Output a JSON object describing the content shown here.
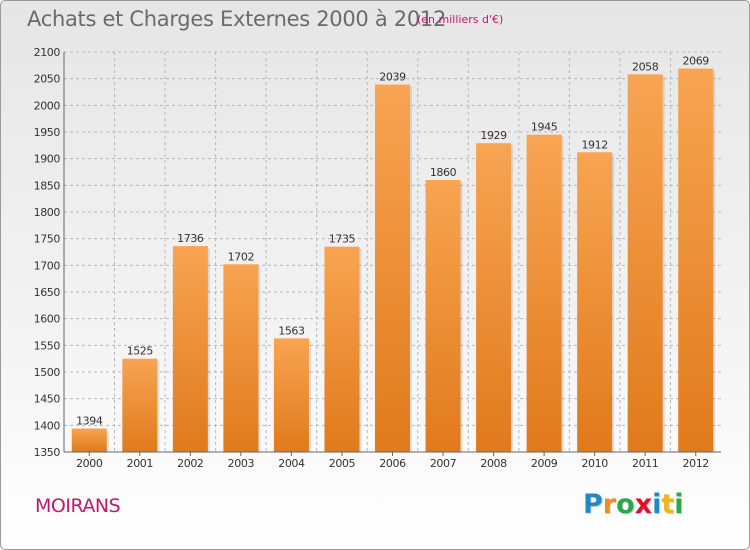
{
  "title": "Achats et Charges Externes 2000 à 2012",
  "subtitle": "(en milliers d'€)",
  "commune": "MOIRANS",
  "logo": {
    "letters": [
      "P",
      "r",
      "o",
      "x",
      "i",
      "t",
      "i"
    ],
    "colors": [
      "#1e88c8",
      "#f08c1e",
      "#2aa84a",
      "#e0102a",
      "#1e88c8",
      "#f0b41e",
      "#2aa84a"
    ]
  },
  "colors": {
    "bar_light": "#f8a452",
    "bar_dark": "#e07a1c",
    "grid": "#b8b8b8"
  },
  "chart_data": {
    "type": "bar",
    "categories": [
      "2000",
      "2001",
      "2002",
      "2003",
      "2004",
      "2005",
      "2006",
      "2007",
      "2008",
      "2009",
      "2010",
      "2011",
      "2012"
    ],
    "values": [
      1394,
      1525,
      1736,
      1702,
      1563,
      1735,
      2039,
      1860,
      1929,
      1945,
      1912,
      2058,
      2069
    ],
    "data_labels": [
      "1394",
      "1525",
      "1736",
      "1702",
      "1563",
      "1735",
      "2039",
      "1860",
      "1929",
      "1945",
      "1912",
      "2058",
      "2069"
    ],
    "ylim": [
      1350,
      2100
    ],
    "yticks": [
      "1350",
      "1400",
      "1450",
      "1500",
      "1550",
      "1600",
      "1650",
      "1700",
      "1750",
      "1800",
      "1850",
      "1900",
      "1950",
      "2000",
      "2050",
      "2100"
    ],
    "grid": true
  }
}
